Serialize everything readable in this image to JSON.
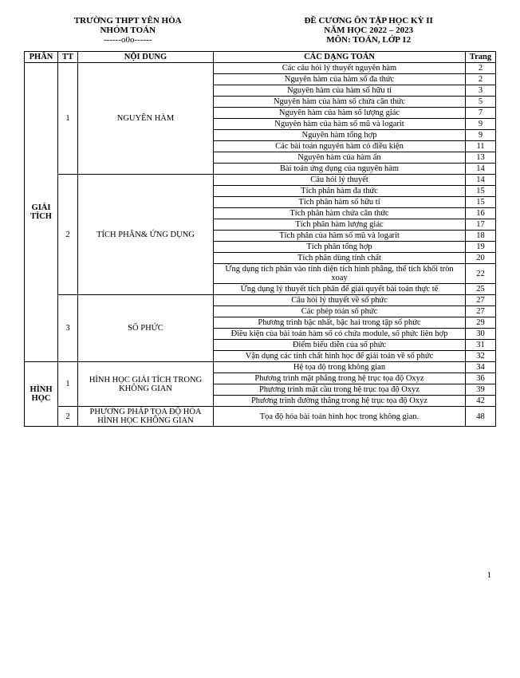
{
  "header": {
    "school": "TRƯỜNG THPT YÊN HÒA",
    "group": "NHÓM TOÁN",
    "divider": "------o0o------",
    "title": "ĐỀ CƯƠNG ÔN TẬP HỌC KỲ II",
    "year": "NĂM HỌC 2022 – 2023",
    "subject": "MÔN: TOÁN, LỚP 12"
  },
  "columns": {
    "phan": "PHẦN",
    "tt": "TT",
    "noidung": "NỘI DUNG",
    "dang": "CÁC DẠNG TOÁN",
    "trang": "Trang"
  },
  "sections": [
    {
      "phan": "GIẢI TÍCH",
      "chapters": [
        {
          "tt": "1",
          "noidung": "NGUYÊN HÀM",
          "rows": [
            {
              "dang": "Các câu hỏi lý thuyết nguyên hàm",
              "page": "2"
            },
            {
              "dang": "Nguyên hàm của hàm số đa thức",
              "page": "2"
            },
            {
              "dang": "Nguyên hàm của hàm số hữu tỉ",
              "page": "3"
            },
            {
              "dang": "Nguyên hàm của hàm số chứa căn thức",
              "page": "5"
            },
            {
              "dang": "Nguyên hàm của hàm số lượng giác",
              "page": "7"
            },
            {
              "dang": "Nguyên hàm của hàm số mũ và logarit",
              "page": "9"
            },
            {
              "dang": "Nguyên hàm tổng hợp",
              "page": "9"
            },
            {
              "dang": "Các bài toán nguyên hàm có điều kiện",
              "page": "11"
            },
            {
              "dang": "Nguyên hàm của hàm ẩn",
              "page": "13"
            },
            {
              "dang": "Bài toán ứng dụng của nguyên hàm",
              "page": "14"
            }
          ]
        },
        {
          "tt": "2",
          "noidung": "TÍCH PHÂN& ỨNG DỤNG",
          "rows": [
            {
              "dang": "Câu hỏi lý thuyết",
              "page": "14"
            },
            {
              "dang": "Tích phân hàm đa thức",
              "page": "15"
            },
            {
              "dang": "Tích phân hàm số hữu tỉ",
              "page": "15"
            },
            {
              "dang": "Tích phân hàm chứa căn thức",
              "page": "16"
            },
            {
              "dang": "Tích phân hàm lượng giác",
              "page": "17"
            },
            {
              "dang": "Tích phân của hàm số mũ và logarit",
              "page": "18"
            },
            {
              "dang": "Tích phân tổng hợp",
              "page": "19"
            },
            {
              "dang": "Tích phân dùng tính chất",
              "page": "20"
            },
            {
              "dang": "Ứng dụng tích phân vào tính diện tích hình phẳng, thể tích khối tròn xoay",
              "page": "22"
            },
            {
              "dang": "Ứng dụng lý thuyết tích phân để giải quyết bài toán thực tế",
              "page": "25"
            }
          ]
        },
        {
          "tt": "3",
          "noidung": "SỐ PHỨC",
          "rows": [
            {
              "dang": "Câu hỏi lý thuyết về số phức",
              "page": "27"
            },
            {
              "dang": "Các phép toán số phức",
              "page": "27"
            },
            {
              "dang": "Phương trình bậc nhất, bậc hai trong tập số phức",
              "page": "29"
            },
            {
              "dang": "Điều kiện của bài toán hàm số có chứa module, số phức liên hợp",
              "page": "30"
            },
            {
              "dang": "Điểm biểu diễn của số phức",
              "page": "31"
            },
            {
              "dang": "Vận dụng các tính chất hình học để giải toán về số phức",
              "page": "32"
            }
          ]
        }
      ]
    },
    {
      "phan": "HÌNH HỌC",
      "chapters": [
        {
          "tt": "1",
          "noidung": "HÌNH HỌC GIẢI TÍCH TRONG KHÔNG GIAN",
          "rows": [
            {
              "dang": "Hệ tọa độ trong không gian",
              "page": "34"
            },
            {
              "dang": "Phương trình mặt phẳng trong hệ trục tọa độ Oxyz",
              "page": "36"
            },
            {
              "dang": "Phương trình mặt cầu trong hệ trục tọa độ Oxyz",
              "page": "39"
            },
            {
              "dang": "Phương trình đường thẳng trong hệ trục tọa độ Oxyz",
              "page": "42"
            }
          ]
        },
        {
          "tt": "2",
          "noidung": "PHƯƠNG PHÁP TỌA ĐỘ HÓA HÌNH HỌC KHÔNG GIAN",
          "rows": [
            {
              "dang": "Tọa độ hóa bài toán hình học trong không gian.",
              "page": "48"
            }
          ]
        }
      ]
    }
  ],
  "pageNumber": "1"
}
